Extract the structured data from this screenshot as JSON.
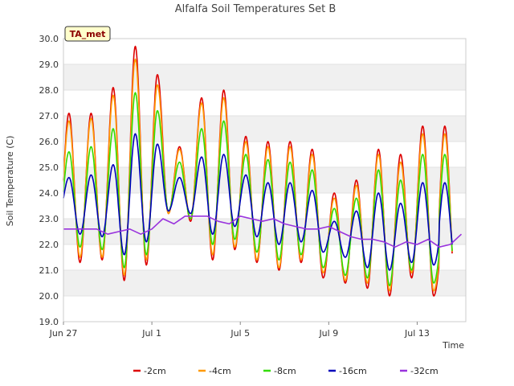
{
  "chart_data": {
    "type": "line",
    "title": "Alfalfa Soil Temperatures Set B",
    "xlabel": "Time",
    "ylabel": "Soil Temperature (C)",
    "ylim": [
      19.0,
      30.0
    ],
    "yticks": [
      "19.0",
      "20.0",
      "21.0",
      "22.0",
      "23.0",
      "24.0",
      "25.0",
      "26.0",
      "27.0",
      "28.0",
      "29.0",
      "30.0"
    ],
    "xlim_days": [
      0,
      18.2
    ],
    "xticks": [
      {
        "label": "Jun 27",
        "day": 0
      },
      {
        "label": "Jul 1",
        "day": 4
      },
      {
        "label": "Jul 5",
        "day": 8
      },
      {
        "label": "Jul 9",
        "day": 12
      },
      {
        "label": "Jul 13",
        "day": 16
      }
    ],
    "grid": true,
    "legend_position": "bottom",
    "site_badge": "TA_met",
    "colors": {
      "badge_bg": "#ffffcc",
      "badge_text": "#8b0000",
      "band": "#f0f0f0"
    },
    "series": [
      {
        "name": "-2cm",
        "color": "#dd0000",
        "max": [
          27.1,
          27.1,
          28.1,
          29.7,
          28.6,
          25.8,
          27.7,
          28.0,
          26.2,
          26.0,
          26.0,
          25.7,
          24.0,
          24.5,
          25.7,
          25.5,
          26.6
        ],
        "min": [
          21.3,
          21.4,
          20.6,
          21.2,
          23.2,
          22.9,
          21.4,
          21.8,
          21.3,
          21.0,
          21.3,
          20.7,
          20.5,
          20.3,
          20.0,
          20.7,
          20.0
        ],
        "end": 22.5
      },
      {
        "name": "-4cm",
        "color": "#ff9900",
        "max": [
          26.8,
          26.9,
          27.8,
          29.2,
          28.2,
          25.7,
          27.5,
          27.7,
          26.0,
          25.8,
          25.8,
          25.5,
          23.8,
          24.3,
          25.5,
          25.2,
          26.3
        ],
        "min": [
          21.5,
          21.5,
          20.8,
          21.4,
          23.2,
          23.0,
          21.6,
          21.9,
          21.4,
          21.1,
          21.4,
          20.9,
          20.6,
          20.5,
          20.2,
          20.9,
          20.2
        ],
        "end": 22.6
      },
      {
        "name": "-8cm",
        "color": "#33dd00",
        "max": [
          25.6,
          25.8,
          26.5,
          27.9,
          27.2,
          25.2,
          26.5,
          26.8,
          25.5,
          25.3,
          25.2,
          24.9,
          23.4,
          23.8,
          24.9,
          24.5,
          25.5
        ],
        "min": [
          21.9,
          21.8,
          21.1,
          21.6,
          23.3,
          23.0,
          22.0,
          22.2,
          21.7,
          21.4,
          21.6,
          21.1,
          20.8,
          20.7,
          20.4,
          21.0,
          20.5
        ],
        "end": 22.8
      },
      {
        "name": "-16cm",
        "color": "#0000bb",
        "max": [
          24.6,
          24.7,
          25.1,
          26.3,
          25.9,
          24.6,
          25.4,
          25.5,
          24.7,
          24.4,
          24.4,
          24.1,
          22.9,
          23.3,
          24.0,
          23.6,
          24.4
        ],
        "min": [
          22.4,
          22.3,
          21.6,
          22.1,
          23.3,
          23.2,
          22.4,
          22.7,
          22.3,
          22.0,
          22.1,
          21.7,
          21.5,
          21.1,
          21.0,
          21.3,
          21.2
        ],
        "end": 23.2
      },
      {
        "name": "-32cm",
        "color": "#9933dd",
        "points": [
          [
            0,
            22.6
          ],
          [
            1,
            22.6
          ],
          [
            1.5,
            22.6
          ],
          [
            2,
            22.4
          ],
          [
            2.5,
            22.5
          ],
          [
            3,
            22.6
          ],
          [
            3.5,
            22.4
          ],
          [
            4,
            22.6
          ],
          [
            4.5,
            23.0
          ],
          [
            5,
            22.8
          ],
          [
            5.5,
            23.1
          ],
          [
            6,
            23.1
          ],
          [
            6.5,
            23.1
          ],
          [
            7,
            22.9
          ],
          [
            7.5,
            22.8
          ],
          [
            8,
            23.1
          ],
          [
            8.5,
            23.0
          ],
          [
            9,
            22.9
          ],
          [
            9.5,
            23.0
          ],
          [
            10,
            22.8
          ],
          [
            10.5,
            22.7
          ],
          [
            11,
            22.6
          ],
          [
            11.5,
            22.6
          ],
          [
            12,
            22.7
          ],
          [
            12.5,
            22.5
          ],
          [
            13,
            22.3
          ],
          [
            13.5,
            22.2
          ],
          [
            14,
            22.2
          ],
          [
            14.5,
            22.1
          ],
          [
            15,
            21.9
          ],
          [
            15.5,
            22.1
          ],
          [
            16,
            22.0
          ],
          [
            16.5,
            22.2
          ],
          [
            17,
            21.9
          ],
          [
            17.5,
            22.0
          ],
          [
            18,
            22.4
          ]
        ]
      }
    ]
  }
}
